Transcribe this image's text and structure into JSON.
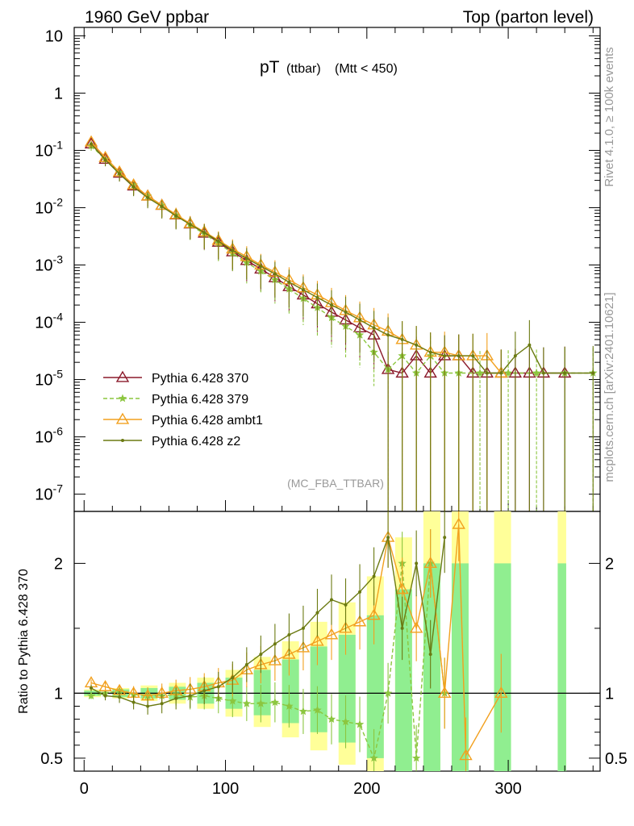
{
  "header": {
    "left": "1960 GeV ppbar",
    "right": "Top (parton level)"
  },
  "plot_title": {
    "main": "pT",
    "sub": "(ttbar)",
    "cut": "(Mtt < 450)"
  },
  "analysis_label": "(MC_FBA_TTBAR)",
  "side_text": {
    "rivet": "Rivet 4.1.0, ≥ 100k events",
    "mcplots": "mcplots.cern.ch [arXiv:2401.10621]"
  },
  "colors": {
    "p370": "#8b1a2b",
    "p379": "#8cc63f",
    "ambt1": "#f2a01e",
    "z2": "#6b7a12",
    "band_inner": "#90ee90",
    "band_outer": "#ffff99"
  },
  "chart_data": [
    {
      "type": "line",
      "log_y": true,
      "title": "pT (ttbar) (Mtt < 450)",
      "xlabel": "",
      "ylabel": "",
      "xlim": [
        -7,
        365
      ],
      "ylim": [
        5e-08,
        14
      ],
      "y_tick_labels": [
        "10^-7",
        "10^-6",
        "10^-5",
        "10^-4",
        "10^-3",
        "10^-2",
        "10^-1",
        "1",
        "10"
      ],
      "legend_position": "middle-left",
      "series": [
        {
          "name": "Pythia 6.428 370",
          "style": "solid, open triangles",
          "x": [
            5,
            15,
            25,
            35,
            45,
            55,
            65,
            75,
            85,
            95,
            105,
            115,
            125,
            135,
            145,
            155,
            165,
            175,
            185,
            195,
            205,
            215,
            225,
            235,
            245,
            255,
            265,
            275,
            285,
            295,
            305,
            315,
            325,
            340
          ],
          "values": [
            0.13,
            0.07,
            0.04,
            0.024,
            0.016,
            0.011,
            0.0075,
            0.0052,
            0.0036,
            0.0025,
            0.0017,
            0.0012,
            0.00085,
            0.0006,
            0.00042,
            0.0003,
            0.00021,
            0.00015,
            0.00011,
            8e-05,
            6e-05,
            1.5e-05,
            1.3e-05,
            2.6e-05,
            1.3e-05,
            2.6e-05,
            2.6e-05,
            1.3e-05,
            1.3e-05,
            1.3e-05,
            1.3e-05,
            1.3e-05,
            1.3e-05,
            1.3e-05
          ]
        },
        {
          "name": "Pythia 6.428 379",
          "style": "dashed, stars",
          "x": [
            5,
            15,
            25,
            35,
            45,
            55,
            65,
            75,
            85,
            95,
            105,
            115,
            125,
            135,
            145,
            155,
            165,
            175,
            185,
            195,
            205,
            215,
            225,
            235,
            245,
            255,
            265,
            280,
            300,
            320,
            340,
            360
          ],
          "values": [
            0.12,
            0.07,
            0.041,
            0.025,
            0.016,
            0.011,
            0.0074,
            0.005,
            0.0035,
            0.0024,
            0.0016,
            0.0011,
            0.00078,
            0.00055,
            0.00038,
            0.00026,
            0.00018,
            0.00012,
            8.5e-05,
            6e-05,
            3e-05,
            1.5e-05,
            2.6e-05,
            1.3e-05,
            2.6e-05,
            1.3e-05,
            1.3e-05,
            1.3e-05,
            1.3e-05,
            1.3e-05,
            1.3e-05,
            1.3e-05
          ]
        },
        {
          "name": "Pythia 6.428 ambt1",
          "style": "solid, open triangles",
          "x": [
            5,
            15,
            25,
            35,
            45,
            55,
            65,
            75,
            85,
            95,
            105,
            115,
            125,
            135,
            145,
            155,
            165,
            175,
            185,
            195,
            205,
            215,
            225,
            235,
            245,
            255,
            265,
            275,
            285,
            295
          ],
          "values": [
            0.14,
            0.075,
            0.042,
            0.025,
            0.016,
            0.011,
            0.0076,
            0.0053,
            0.0038,
            0.0027,
            0.0019,
            0.0014,
            0.001,
            0.00075,
            0.00055,
            0.0004,
            0.0003,
            0.00022,
            0.00016,
            0.00012,
            9e-05,
            7e-05,
            5e-05,
            4e-05,
            3e-05,
            3e-05,
            2.6e-05,
            2.6e-05,
            2.6e-05,
            1.3e-05
          ]
        },
        {
          "name": "Pythia 6.428 z2",
          "style": "solid, small dots",
          "x": [
            5,
            15,
            25,
            35,
            45,
            55,
            65,
            75,
            85,
            95,
            105,
            115,
            125,
            135,
            145,
            155,
            165,
            175,
            185,
            195,
            205,
            215,
            225,
            235,
            245,
            255,
            265,
            275,
            285,
            295,
            305,
            315,
            325,
            340,
            360
          ],
          "values": [
            0.13,
            0.068,
            0.039,
            0.023,
            0.015,
            0.0105,
            0.0072,
            0.0051,
            0.0037,
            0.0026,
            0.0018,
            0.0013,
            0.00095,
            0.0007,
            0.0005,
            0.00037,
            0.00027,
            0.0002,
            0.00015,
            0.00011,
            8e-05,
            6e-05,
            5e-05,
            4e-05,
            3e-05,
            2.6e-05,
            2.6e-05,
            2.6e-05,
            1.3e-05,
            1.3e-05,
            2.6e-05,
            4e-05,
            1.3e-05,
            1.3e-05,
            1.3e-05
          ]
        }
      ]
    },
    {
      "type": "line",
      "title": "",
      "xlabel": "",
      "ylabel": "Ratio to Pythia 6.428 370",
      "xlim": [
        -7,
        365
      ],
      "ylim": [
        0.4,
        2.4
      ],
      "y_tick_labels": [
        "0.5",
        "1",
        "2"
      ],
      "x_tick_labels": [
        "0",
        "100",
        "200",
        "300"
      ],
      "reference_line": 1,
      "bands": [
        {
          "name": "stat uncertainty (outer)",
          "x": [
            5,
            25,
            45,
            65,
            85,
            105,
            125,
            145,
            165,
            185,
            205,
            225,
            245,
            265,
            295,
            340
          ],
          "upper": [
            1.03,
            1.04,
            1.06,
            1.08,
            1.12,
            1.18,
            1.28,
            1.4,
            1.55,
            1.7,
            1.9,
            2.2,
            2.4,
            2.4,
            2.4,
            2.4
          ],
          "lower": [
            0.97,
            0.96,
            0.94,
            0.92,
            0.88,
            0.82,
            0.74,
            0.66,
            0.56,
            0.45,
            0.4,
            0.4,
            0.4,
            0.4,
            0.4,
            0.4
          ]
        },
        {
          "name": "stat uncertainty (inner)",
          "x": [
            5,
            25,
            45,
            65,
            85,
            105,
            125,
            145,
            165,
            185,
            205,
            225,
            245,
            265,
            295,
            340
          ],
          "upper": [
            1.02,
            1.03,
            1.04,
            1.05,
            1.08,
            1.12,
            1.18,
            1.26,
            1.36,
            1.45,
            1.6,
            1.8,
            2.0,
            2.0,
            2.0,
            2.0
          ],
          "lower": [
            0.98,
            0.97,
            0.96,
            0.95,
            0.92,
            0.88,
            0.83,
            0.77,
            0.7,
            0.62,
            0.5,
            0.4,
            0.4,
            0.4,
            0.4,
            0.4
          ]
        }
      ],
      "series": [
        {
          "name": "Pythia 6.428 379",
          "x": [
            5,
            15,
            25,
            35,
            45,
            55,
            65,
            75,
            85,
            95,
            105,
            115,
            125,
            135,
            145,
            155,
            165,
            175,
            185,
            195,
            205,
            215,
            225,
            235,
            245,
            255
          ],
          "values": [
            0.98,
            1.0,
            1.02,
            0.99,
            0.98,
            0.98,
            0.99,
            0.97,
            0.98,
            0.96,
            0.94,
            0.92,
            0.92,
            0.93,
            0.9,
            0.86,
            0.87,
            0.8,
            0.78,
            0.76,
            0.5,
            1.0,
            2.0,
            0.5,
            2.0,
            1.0
          ]
        },
        {
          "name": "Pythia 6.428 ambt1",
          "x": [
            5,
            15,
            25,
            35,
            45,
            55,
            65,
            75,
            85,
            95,
            105,
            115,
            125,
            135,
            145,
            155,
            165,
            175,
            185,
            195,
            205,
            215,
            225,
            235,
            245,
            255,
            265,
            270,
            295
          ],
          "values": [
            1.08,
            1.05,
            1.02,
            1.0,
            0.98,
            1.0,
            1.02,
            1.03,
            1.05,
            1.08,
            1.1,
            1.18,
            1.22,
            1.25,
            1.3,
            1.35,
            1.4,
            1.45,
            1.5,
            1.55,
            1.6,
            2.2,
            1.8,
            1.5,
            2.0,
            1.0,
            2.3,
            0.52,
            1.0
          ]
        },
        {
          "name": "Pythia 6.428 z2",
          "x": [
            5,
            15,
            25,
            35,
            45,
            55,
            65,
            75,
            85,
            95,
            105,
            115,
            125,
            135,
            145,
            155,
            165,
            175,
            185,
            195,
            205,
            215,
            225,
            235,
            245,
            255
          ],
          "values": [
            1.04,
            0.98,
            0.97,
            0.93,
            0.9,
            0.92,
            0.96,
            0.98,
            1.02,
            1.05,
            1.12,
            1.22,
            1.3,
            1.38,
            1.45,
            1.5,
            1.62,
            1.72,
            1.68,
            1.78,
            1.9,
            2.2,
            1.5,
            2.0,
            1.3,
            2.2
          ]
        }
      ]
    }
  ]
}
